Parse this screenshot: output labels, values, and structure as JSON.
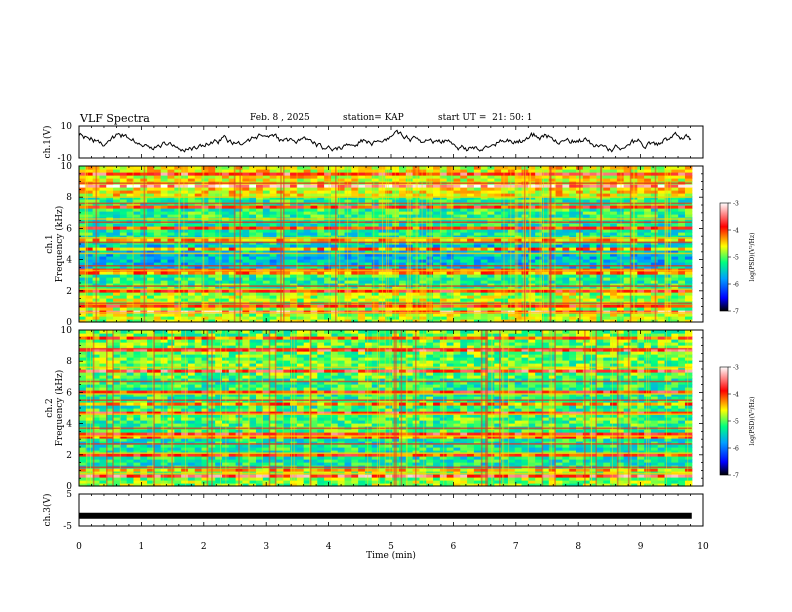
{
  "header": {
    "title": "VLF Spectra",
    "date": "Feb. 8 , 2025",
    "station": "station= KAP",
    "start": "start UT =  21: 50: 1"
  },
  "chart_data": [
    {
      "type": "line",
      "panel": "ch1-waveform",
      "ylabel": "ch.1(V)",
      "ylim": [
        -10,
        10
      ],
      "yticks": [
        "10",
        "-10"
      ]
    },
    {
      "type": "heatmap",
      "panel": "ch1-spectrogram",
      "ylabel": "ch.1\nFrequency (kHz)",
      "ylabel_lines": [
        "ch.1",
        "Frequency (kHz)"
      ],
      "ylim": [
        0,
        10
      ],
      "yticks": [
        "0",
        "2",
        "4",
        "6",
        "8",
        "10"
      ],
      "colorbar": {
        "label": "log(PSD)(V²/Hz)",
        "ticks": [
          "-3",
          "-4",
          "-5",
          "-6",
          "-7"
        ],
        "range": [
          -7,
          -3
        ]
      }
    },
    {
      "type": "heatmap",
      "panel": "ch2-spectrogram",
      "ylabel": "ch.2\nFrequency (kHz)",
      "ylabel_lines": [
        "ch.2",
        "Frequency (kHz)"
      ],
      "ylim": [
        0,
        10
      ],
      "yticks": [
        "0",
        "2",
        "4",
        "6",
        "8",
        "10"
      ],
      "colorbar": {
        "label": "log(PSD)(V²/Hz)",
        "ticks": [
          "-3",
          "-4",
          "-5",
          "-6",
          "-7"
        ],
        "range": [
          -7,
          -3
        ]
      }
    },
    {
      "type": "line",
      "panel": "ch3-waveform",
      "ylabel": "ch.3(V)",
      "ylim": [
        -5,
        5
      ],
      "yticks": [
        "5",
        "-5"
      ],
      "series": [
        {
          "x": [
            0,
            9.82
          ],
          "y": [
            -1.8,
            -1.8
          ]
        }
      ]
    }
  ],
  "xaxis": {
    "label": "Time (min)",
    "range": [
      0,
      10
    ],
    "data_end": 9.82,
    "ticks": [
      "0",
      "1",
      "2",
      "3",
      "4",
      "5",
      "6",
      "7",
      "8",
      "9",
      "10"
    ]
  }
}
